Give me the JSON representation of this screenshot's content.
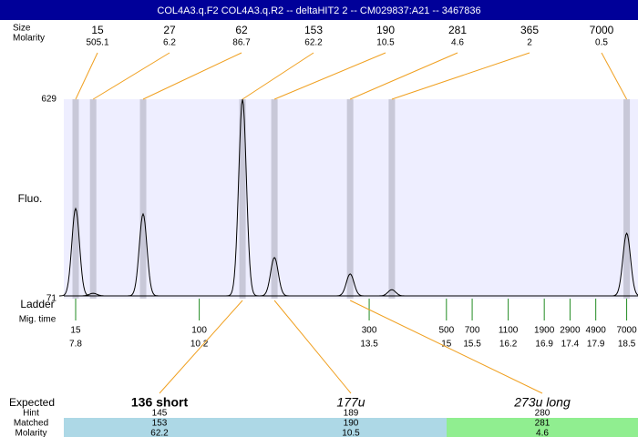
{
  "header": {
    "title": "COL4A3.q.F2  COL4A3.q.R2 -- deltaHIT2 2 -- CM029837:A21 -- 3467836"
  },
  "chart_data": {
    "type": "electropherogram",
    "y_label": "Fluo.",
    "ylim": [
      71,
      629
    ],
    "yticks": [
      71,
      629
    ],
    "xlim": [
      7.57,
      18.72
    ],
    "peak_row_labels": [
      "Size",
      "Molarity"
    ],
    "peaks": {
      "sizes": [
        15,
        27,
        62,
        153,
        190,
        281,
        365,
        7000
      ],
      "molarity": [
        505.1,
        6.2,
        86.7,
        62.2,
        10.5,
        4.6,
        2,
        0.5
      ],
      "time": [
        7.8,
        8.14,
        9.11,
        11.04,
        11.66,
        13.13,
        13.94,
        18.5
      ],
      "height": [
        323,
        86,
        308,
        629,
        186,
        140,
        96,
        254
      ]
    },
    "ladder": {
      "labels": [
        "Ladder",
        "Mig. time"
      ],
      "sizes": [
        15,
        100,
        300,
        500,
        700,
        1100,
        1900,
        2900,
        4900,
        7000
      ],
      "times": [
        7.8,
        10.2,
        13.5,
        15,
        15.5,
        16.2,
        16.9,
        17.4,
        17.9,
        18.5
      ],
      "color": "#228b22"
    },
    "expected": {
      "labels": [
        "Expected",
        "Hint",
        "Matched",
        "Molarity"
      ],
      "groups": [
        {
          "name": "136 short",
          "hint": 145,
          "matched": 153,
          "molarity": 62.2,
          "color": "#add8e6",
          "style": "bold"
        },
        {
          "name": "177u",
          "hint": 189,
          "matched": 190,
          "molarity": 10.5,
          "color": "#add8e6",
          "style": "italic"
        },
        {
          "name": "273u long",
          "hint": 280,
          "matched": 281,
          "molarity": 4.6,
          "color": "#90ee90",
          "style": "italic"
        }
      ]
    },
    "colors": {
      "header": "#000099",
      "plot": "#eeeeff",
      "band": "#c8c8d8",
      "link": "#f0a020",
      "trace": "#000000"
    }
  }
}
